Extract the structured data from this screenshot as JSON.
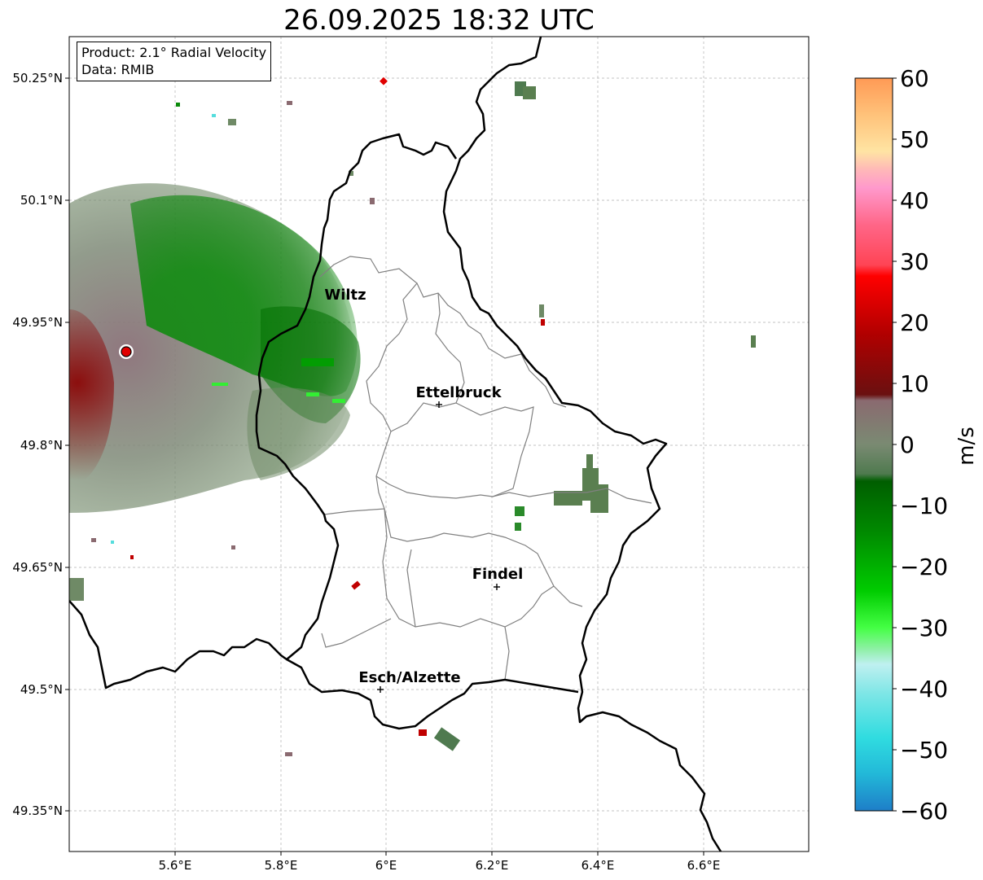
{
  "title": "26.09.2025 18:32 UTC",
  "info": {
    "product": "Product: 2.1° Radial Velocity",
    "data": "Data: RMIB"
  },
  "map": {
    "lon_ticks": [
      "5.6°E",
      "5.8°E",
      "6°E",
      "6.2°E",
      "6.4°E",
      "6.6°E"
    ],
    "lat_ticks": [
      "50.25°N",
      "50.1°N",
      "49.95°N",
      "49.8°N",
      "49.65°N",
      "49.5°N",
      "49.35°N"
    ],
    "cities": [
      {
        "name": "Wiltz",
        "marker": false
      },
      {
        "name": "Ettelbruck",
        "marker": true
      },
      {
        "name": "Findel",
        "marker": true
      },
      {
        "name": "Esch/Alzette",
        "marker": true
      }
    ],
    "radar_site_color": "#e00000"
  },
  "colorbar": {
    "label": "m/s",
    "ticks": [
      "60",
      "50",
      "40",
      "30",
      "20",
      "10",
      "0",
      "−10",
      "−20",
      "−30",
      "−40",
      "−50",
      "−60"
    ],
    "colors": [
      "#ff9a55",
      "#ffae66",
      "#ffc27a",
      "#ffd68f",
      "#ffe4a3",
      "#ffb8b8",
      "#ff99cc",
      "#ff77aa",
      "#ff5577",
      "#ff3344",
      "#ee0000",
      "#cc0000",
      "#aa0000",
      "#800000",
      "#7a3a3a",
      "#8a6a6a",
      "#7a8a70",
      "#5a8050",
      "#1e8a1e",
      "#00a000",
      "#00cc00",
      "#33ff33",
      "#88ff99",
      "#bff0f0",
      "#90e8e8",
      "#55e0e0",
      "#2ad8e0",
      "#1e80c8"
    ]
  }
}
